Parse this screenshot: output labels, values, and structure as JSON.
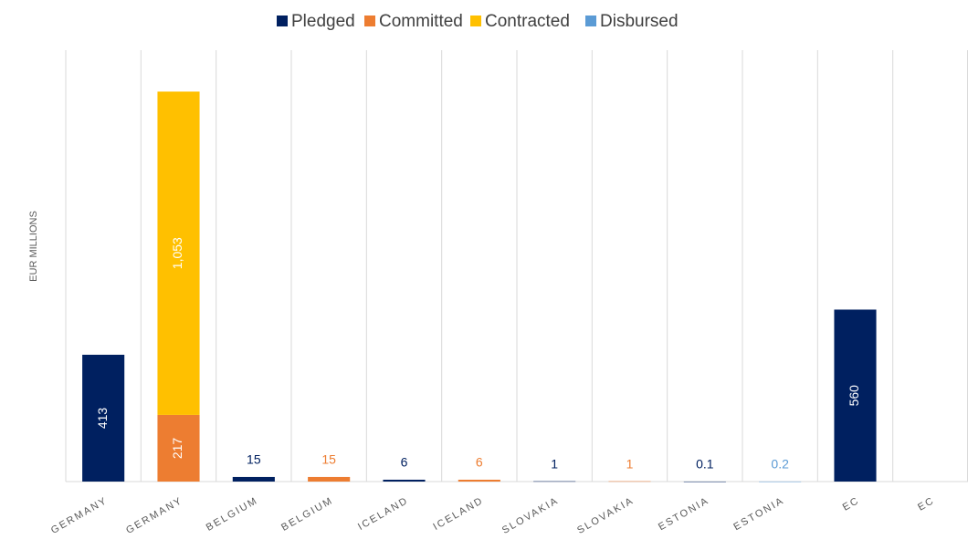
{
  "chart_data": {
    "type": "stacked_bar",
    "y_label": "EUR MILLIONS",
    "categories": [
      "GERMANY",
      "GERMANY",
      "BELGIUM",
      "BELGIUM",
      "ICELAND",
      "ICELAND",
      "SLOVAKIA",
      "SLOVAKIA",
      "ESTONIA",
      "ESTONIA",
      "EC",
      "EC"
    ],
    "series": [
      {
        "name": "Pledged",
        "color": "#002060",
        "values": [
          413,
          null,
          15,
          null,
          6,
          null,
          1,
          null,
          0.1,
          null,
          560,
          null
        ]
      },
      {
        "name": "Committed",
        "color": "#ED7D31",
        "values": [
          null,
          217,
          null,
          15,
          null,
          6,
          null,
          1,
          null,
          null,
          null,
          null
        ]
      },
      {
        "name": "Contracted",
        "color": "#FFC000",
        "values": [
          null,
          1053,
          null,
          null,
          null,
          null,
          null,
          null,
          null,
          null,
          null,
          null
        ],
        "value_labels": [
          null,
          "1,053",
          null,
          null,
          null,
          null,
          null,
          null,
          null,
          null,
          null,
          null
        ]
      },
      {
        "name": "Disbursed",
        "color": "#5B9BD5",
        "values": [
          null,
          null,
          null,
          null,
          null,
          null,
          null,
          null,
          null,
          0.2,
          null,
          null
        ]
      }
    ],
    "ylim": [
      0,
      1500
    ],
    "legend": "top"
  }
}
